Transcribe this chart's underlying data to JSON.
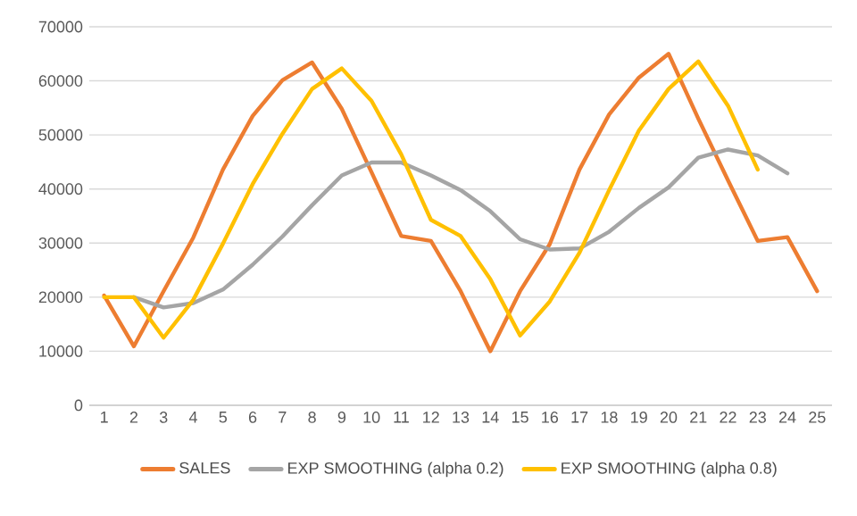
{
  "chart_data": {
    "type": "line",
    "categories": [
      "1",
      "2",
      "3",
      "4",
      "5",
      "6",
      "7",
      "8",
      "9",
      "10",
      "11",
      "12",
      "13",
      "14",
      "15",
      "16",
      "17",
      "18",
      "19",
      "20",
      "21",
      "22",
      "23",
      "24",
      "25"
    ],
    "series": [
      {
        "name": "SALES",
        "color": "#ed7d31",
        "values": [
          20300,
          10900,
          21100,
          31000,
          43600,
          53500,
          60100,
          63400,
          54800,
          43100,
          31300,
          30400,
          21100,
          10000,
          21100,
          29800,
          43600,
          53800,
          60600,
          65000,
          53000,
          41600,
          30400,
          31100,
          21100
        ]
      },
      {
        "name": "EXP SMOOTHING (alpha 0.2)",
        "color": "#a5a5a5",
        "values": [
          null,
          20000,
          18100,
          18900,
          21400,
          26000,
          31200,
          37000,
          42500,
          44900,
          44900,
          42500,
          39800,
          35900,
          30700,
          28800,
          29000,
          32100,
          36500,
          40300,
          45800,
          47300,
          46200,
          42900,
          null
        ]
      },
      {
        "name": "EXP SMOOTHING (alpha 0.8)",
        "color": "#ffc000",
        "values": [
          20000,
          20000,
          12500,
          19500,
          29900,
          40900,
          50200,
          58500,
          62300,
          56300,
          46400,
          34300,
          31300,
          23300,
          12900,
          19200,
          28200,
          39800,
          50800,
          58500,
          63600,
          55400,
          43600,
          null,
          null
        ]
      }
    ],
    "ylim": [
      0,
      70000
    ],
    "yticks": [
      0,
      10000,
      20000,
      30000,
      40000,
      50000,
      60000,
      70000
    ],
    "grid": "y",
    "legend": "bottom",
    "marker": "none",
    "line_style": "solid"
  }
}
